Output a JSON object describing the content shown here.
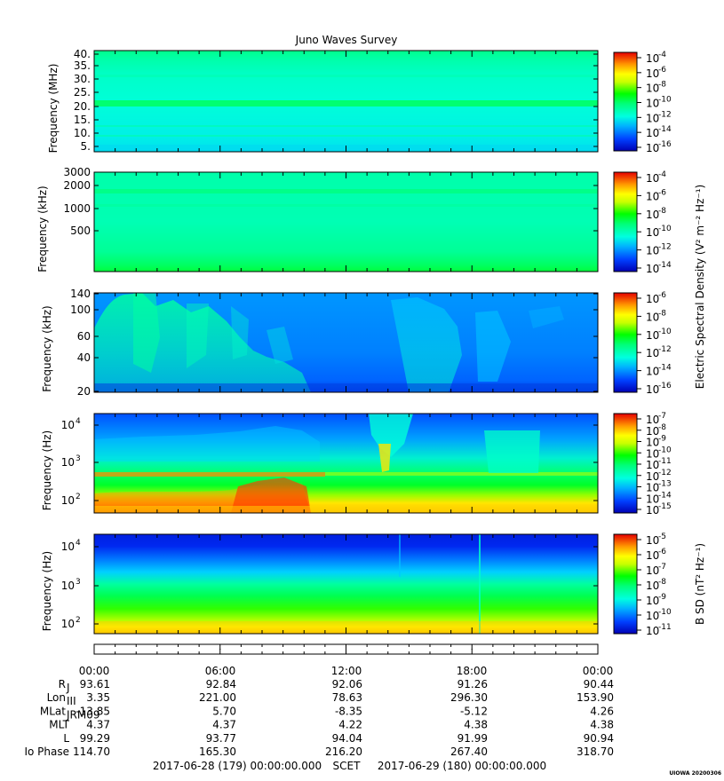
{
  "title": "Juno Waves Survey",
  "credit": "UIOWA 20200306",
  "chart_data": [
    {
      "type": "heatmap",
      "ylabel": "Frequency (MHz)",
      "yticks": [
        "40.",
        "35.",
        "30.",
        "25.",
        "20.",
        "15.",
        "10.",
        "5."
      ],
      "ylim": [
        3,
        41
      ],
      "colorbar_ticks": [
        "-4",
        "-6",
        "-8",
        "-10",
        "-12",
        "-14",
        "-16"
      ],
      "colorbar_label": "",
      "band_features": [
        {
          "y": 21,
          "level": "10^-12"
        }
      ]
    },
    {
      "type": "heatmap",
      "ylabel": "Frequency (kHz)",
      "yticks": [
        "3000",
        "2000",
        "1000",
        "500"
      ],
      "ylim": [
        140,
        3000
      ],
      "y_scale": "log",
      "colorbar_ticks": [
        "-4",
        "-6",
        "-8",
        "-10",
        "-12",
        "-14"
      ],
      "colorbar_label": "Electric Spectral Density (V² m⁻² Hz⁻¹)"
    },
    {
      "type": "heatmap",
      "ylabel": "Frequency (kHz)",
      "yticks": [
        "140",
        "100",
        "60",
        "40",
        "20"
      ],
      "ylim": [
        20,
        140
      ],
      "colorbar_ticks": [
        "-6",
        "-8",
        "-10",
        "-12",
        "-14",
        "-16"
      ],
      "colorbar_label": ""
    },
    {
      "type": "heatmap",
      "ylabel": "Frequency (Hz)",
      "yticks": [
        "4",
        "3",
        "2"
      ],
      "ylim": [
        50,
        20000
      ],
      "y_scale": "log",
      "colorbar_ticks": [
        "-7",
        "-8",
        "-9",
        "-10",
        "-11",
        "-12",
        "-13",
        "-14",
        "-15"
      ],
      "colorbar_label": ""
    },
    {
      "type": "heatmap",
      "ylabel": "Frequency (Hz)",
      "yticks": [
        "4",
        "3",
        "2"
      ],
      "ylim": [
        50,
        20000
      ],
      "y_scale": "log",
      "colorbar_ticks": [
        "-5",
        "-6",
        "-7",
        "-8",
        "-9",
        "-10",
        "-11"
      ],
      "colorbar_label": "B SD (nT² Hz⁻¹)"
    }
  ],
  "ephemeris": {
    "time_labels": [
      "00:00",
      "06:00",
      "12:00",
      "18:00",
      "00:00"
    ],
    "rows": [
      {
        "label": "R",
        "sub": "J",
        "values": [
          "93.61",
          "92.84",
          "92.06",
          "91.26",
          "90.44"
        ]
      },
      {
        "label": "Lon",
        "sub": "III",
        "values": [
          "3.35",
          "221.00",
          "78.63",
          "296.30",
          "153.90"
        ]
      },
      {
        "label": "MLat",
        "sub": "JRM09",
        "values": [
          "-13.85",
          "5.70",
          "-8.35",
          "-5.12",
          "4.26"
        ]
      },
      {
        "label": "MLT",
        "sub": "",
        "values": [
          "4.37",
          "4.37",
          "4.22",
          "4.38",
          "4.38"
        ]
      },
      {
        "label": "L",
        "sub": "",
        "values": [
          "99.29",
          "93.77",
          "94.04",
          "91.99",
          "90.94"
        ]
      },
      {
        "label": "Io Phase",
        "sub": "",
        "values": [
          "114.70",
          "165.30",
          "216.20",
          "267.40",
          "318.70"
        ]
      }
    ],
    "footer": {
      "start": "2017-06-28 (179) 00:00:00.000",
      "frame": "SCET",
      "end": "2017-06-29 (180) 00:00:00.000"
    }
  },
  "colors": {
    "scale": [
      "#0000c8",
      "#0050ff",
      "#00b4ff",
      "#00ffd2",
      "#00ff64",
      "#64ff00",
      "#ffff00",
      "#ffaa00",
      "#ff3c00",
      "#e60000"
    ],
    "background": "#00ffd2"
  }
}
